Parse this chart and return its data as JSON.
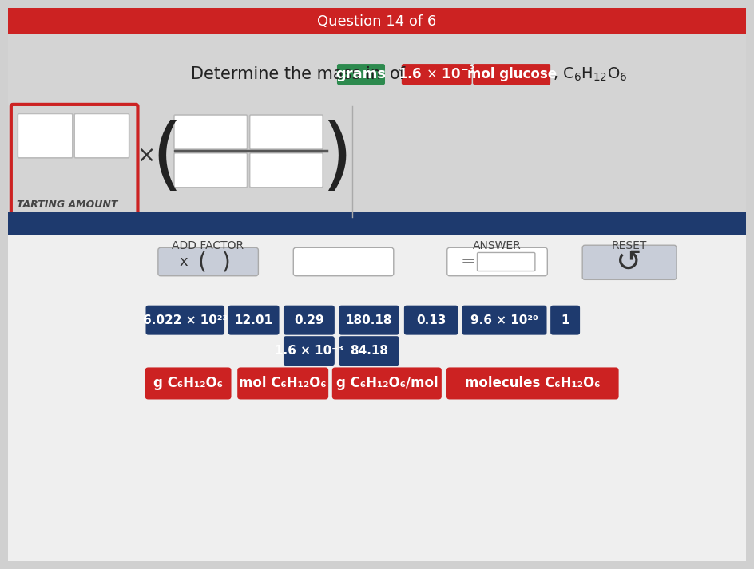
{
  "bg_top_color": "#d0d0d0",
  "bg_bottom_color": "#e8e8e8",
  "top_bar_color": "#cc2222",
  "blue_bar_color": "#1e3a6e",
  "bottom_panel_color": "#f0f0f0",
  "title_text": "Determine the mass in",
  "title_of_text": "of",
  "title_grams_text": "grams",
  "title_amount_text": "1.6 × 10",
  "title_amount_exp": "-3",
  "title_mol_text": "mol glucose",
  "title_formula_text": ", C",
  "title_formula_sub1": "6",
  "title_formula_mid": "H",
  "title_formula_sub2": "12",
  "title_formula_end": "O",
  "title_formula_sub3": "6",
  "starting_amount_label": "TARTING AMOUNT",
  "add_factor_label": "ADD FACTOR",
  "answer_label": "ANSWER",
  "reset_label": "RESET",
  "blue_btn_color": "#1e3a6e",
  "red_btn_color": "#cc2222",
  "green_btn_color": "#2d8a4e",
  "light_btn_color": "#c8cdd8",
  "number_buttons_row1": [
    "6.022 × 10²³",
    "12.01",
    "0.29",
    "180.18",
    "0.13",
    "9.6 × 10²⁰",
    "1"
  ],
  "number_buttons_row2": [
    "1.6 × 10⁻³",
    "84.18"
  ],
  "label_buttons": [
    "g C₆H₁₂O₆",
    "mol C₆H₁₂O₆",
    "g C₆H₁₂O₆/mol",
    "molecules C₆H₁₂O₆"
  ],
  "label_btn_colors": [
    "#cc2222",
    "#cc2222",
    "#cc2222",
    "#cc2222"
  ]
}
